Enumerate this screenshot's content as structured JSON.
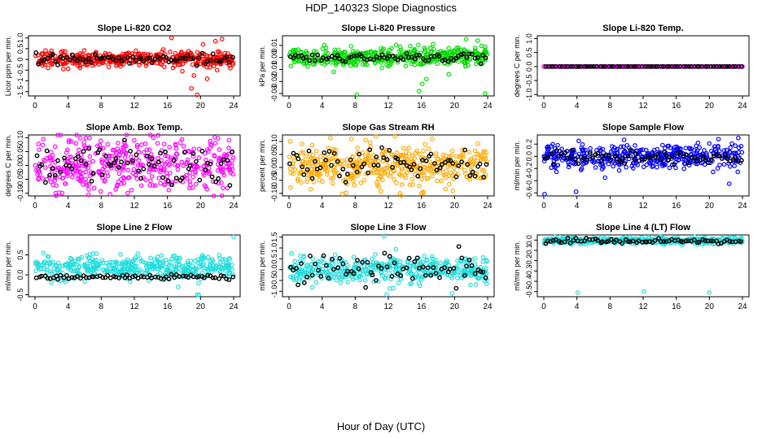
{
  "page": {
    "title": "HDP_140323  Slope Diagnostics",
    "xlabel": "Hour of Day (UTC)"
  },
  "chart_data": [
    {
      "type": "scatter",
      "title": "Slope Li-820 CO2",
      "ylabel": "Licor ppm per min.",
      "color": "#ff0000",
      "xlim": [
        0,
        24
      ],
      "xticks": [
        0,
        4,
        8,
        12,
        16,
        20,
        24
      ],
      "ylim": [
        -1.7,
        1.1
      ],
      "yticks": [
        -1.5,
        -1.0,
        -0.5,
        0.0,
        0.5,
        1.0
      ],
      "ytick_labels": [
        "-1.5",
        "-1",
        "-0.5",
        "0",
        "0.5",
        "1.0"
      ],
      "spread": 0.18,
      "dark_spread": 0.12,
      "dark_center": 0.0,
      "center": 0.0,
      "outliers": [
        [
          16.5,
          1.0
        ],
        [
          20.3,
          0.7
        ],
        [
          21.8,
          0.85
        ],
        [
          22.6,
          0.95
        ],
        [
          20.8,
          -0.9
        ],
        [
          19.2,
          -0.75
        ],
        [
          17.8,
          -0.55
        ],
        [
          18.9,
          -1.35
        ],
        [
          19.6,
          -1.65
        ],
        [
          22.0,
          -0.5
        ]
      ],
      "seed": 11
    },
    {
      "type": "scatter",
      "title": "Slope Li-820 Pressure",
      "ylabel": "kPa per min.",
      "color": "#00dd00",
      "xlim": [
        0,
        24
      ],
      "xticks": [
        0,
        4,
        8,
        12,
        16,
        20,
        24
      ],
      "ylim": [
        -0.032,
        0.018
      ],
      "yticks": [
        -0.03,
        -0.02,
        -0.01,
        0.0,
        0.01
      ],
      "ytick_labels": [
        "-0.03",
        "-0.02",
        "-0.01",
        "0.00",
        "0.01"
      ],
      "spread": 0.004,
      "dark_spread": 0.002,
      "dark_center": 0.0,
      "center": 0.0005,
      "outliers": [
        [
          8.2,
          -0.031
        ],
        [
          15.7,
          -0.028
        ],
        [
          16.1,
          -0.022
        ],
        [
          21.4,
          0.015
        ],
        [
          23.7,
          -0.03
        ],
        [
          22.8,
          0.014
        ],
        [
          17.4,
          0.011
        ],
        [
          16.6,
          -0.018
        ],
        [
          5.4,
          -0.012
        ],
        [
          19.3,
          -0.014
        ]
      ],
      "seed": 22
    },
    {
      "type": "scatter",
      "title": "Slope Li-820 Temp.",
      "ylabel": "degrees C per min.",
      "color": "#ff00ff",
      "xlim": [
        0,
        24
      ],
      "xticks": [
        0,
        4,
        8,
        12,
        16,
        20,
        24
      ],
      "ylim": [
        -1.05,
        1.1
      ],
      "yticks": [
        -1.0,
        -0.5,
        0.0,
        0.5,
        1.0
      ],
      "ytick_labels": [
        "-1.0",
        "-0.5",
        "0.0",
        "0.5",
        "1.0"
      ],
      "spread": 0.0,
      "dark_spread": 0.0,
      "dark_center": 0.0,
      "center": 0.0,
      "outliers": [],
      "seed": 33
    },
    {
      "type": "scatter",
      "title": "Slope Amb. Box Temp.",
      "ylabel": "degrees C per min.",
      "color": "#ff00ff",
      "xlim": [
        0,
        24
      ],
      "xticks": [
        0,
        4,
        8,
        12,
        16,
        20,
        24
      ],
      "ylim": [
        -0.11,
        0.11
      ],
      "yticks": [
        -0.1,
        -0.05,
        0.0,
        0.05,
        0.1
      ],
      "ytick_labels": [
        "-0.10",
        "-0.05",
        "0.00",
        "0.05",
        "0.10"
      ],
      "spread": 0.05,
      "dark_spread": 0.04,
      "dark_center": 0.0,
      "center": 0.0,
      "outliers": [
        [
          2.5,
          -0.1
        ],
        [
          11.2,
          -0.1
        ],
        [
          1.0,
          0.095
        ],
        [
          14.3,
          0.1
        ]
      ],
      "seed": 44
    },
    {
      "type": "scatter",
      "title": "Slope Gas Stream RH",
      "ylabel": "percent per min.",
      "color": "#ffaa00",
      "xlim": [
        0,
        24
      ],
      "xticks": [
        0,
        4,
        8,
        12,
        16,
        20,
        24
      ],
      "ylim": [
        -0.11,
        0.125
      ],
      "yticks": [
        -0.1,
        -0.05,
        0.0,
        0.05,
        0.1
      ],
      "ytick_labels": [
        "-0.10",
        "-0.05",
        "0.00",
        "0.05",
        "0.10"
      ],
      "spread": 0.04,
      "dark_spread": 0.03,
      "dark_center": 0.005,
      "center": 0.005,
      "outliers": [
        [
          10.5,
          0.12
        ],
        [
          12.8,
          0.12
        ],
        [
          13.4,
          -0.1
        ],
        [
          16.0,
          -0.1
        ],
        [
          19.8,
          -0.09
        ],
        [
          17.3,
          0.11
        ]
      ],
      "seed": 55
    },
    {
      "type": "scatter",
      "title": "Slope Sample Flow",
      "ylabel": "ml/min per min.",
      "color": "#0000ff",
      "xlim": [
        0,
        24
      ],
      "xticks": [
        0,
        4,
        8,
        12,
        16,
        20,
        24
      ],
      "ylim": [
        -0.65,
        0.35
      ],
      "yticks": [
        -0.6,
        -0.4,
        -0.2,
        0.0,
        0.2
      ],
      "ytick_labels": [
        "-0.6",
        "-0.4",
        "-0.2",
        "0.0",
        "0.2"
      ],
      "spread": 0.1,
      "dark_spread": 0.06,
      "dark_center": -0.02,
      "center": 0.0,
      "outliers": [
        [
          0.1,
          -0.62
        ],
        [
          3.9,
          -0.58
        ],
        [
          22.4,
          -0.45
        ],
        [
          9.7,
          0.27
        ],
        [
          21.1,
          0.28
        ],
        [
          23.5,
          0.3
        ],
        [
          7.4,
          -0.35
        ]
      ],
      "seed": 66
    },
    {
      "type": "scatter",
      "title": "Slope Line 2 Flow",
      "ylabel": "ml/min per min.",
      "color": "#22dddd",
      "xlim": [
        0,
        24
      ],
      "xticks": [
        0,
        4,
        8,
        12,
        16,
        20,
        24
      ],
      "ylim": [
        -0.55,
        1.0
      ],
      "yticks": [
        -0.5,
        0.0,
        0.5
      ],
      "ytick_labels": [
        "-0.5",
        "0.0",
        "0.5"
      ],
      "spread": 0.15,
      "dark_spread": 0.03,
      "dark_center": -0.05,
      "center": 0.2,
      "outliers": [
        [
          19.8,
          -0.5
        ],
        [
          24.0,
          0.95
        ],
        [
          19.6,
          -0.5
        ],
        [
          17.3,
          -0.3
        ]
      ],
      "seed": 77
    },
    {
      "type": "scatter",
      "title": "Slope Line 3 Flow",
      "ylabel": "ml/min per min.",
      "color": "#22dddd",
      "xlim": [
        0,
        24
      ],
      "xticks": [
        0,
        4,
        8,
        12,
        16,
        20,
        24
      ],
      "ylim": [
        -1.25,
        1.6
      ],
      "yticks": [
        -1.0,
        -0.5,
        0.0,
        0.5,
        1.0,
        1.5
      ],
      "ytick_labels": [
        "-1.0",
        "-0.5",
        "0.0",
        "0.5",
        "1.0",
        "1.5"
      ],
      "spread": 0.3,
      "dark_spread": 0.35,
      "dark_center": 0.0,
      "center": 0.0,
      "outliers": [
        [
          11.5,
          1.55
        ],
        [
          11.8,
          -1.15
        ],
        [
          19.7,
          -1.1
        ],
        [
          0.3,
          0.75
        ],
        [
          12.6,
          -0.85
        ],
        [
          12.9,
          0.95
        ]
      ],
      "seed": 88
    },
    {
      "type": "scatter",
      "title": "Slope Line 4 (LT) Flow",
      "ylabel": "ml/min per min.",
      "color": "#22dddd",
      "xlim": [
        0,
        24
      ],
      "xticks": [
        0,
        4,
        8,
        12,
        16,
        20,
        24
      ],
      "ylim": [
        -0.55,
        0.05
      ],
      "yticks": [
        -0.5,
        -0.4,
        -0.3,
        -0.2,
        -0.1,
        0.0
      ],
      "ytick_labels": [
        "-0.5",
        "-0.4",
        "-0.3",
        "-0.2",
        "-0.1",
        "0.0"
      ],
      "spread": 0.015,
      "dark_spread": 0.012,
      "dark_center": -0.01,
      "center": -0.005,
      "outliers": [
        [
          4.1,
          -0.51
        ],
        [
          12.1,
          -0.5
        ],
        [
          20.0,
          -0.51
        ]
      ],
      "seed": 99
    }
  ]
}
